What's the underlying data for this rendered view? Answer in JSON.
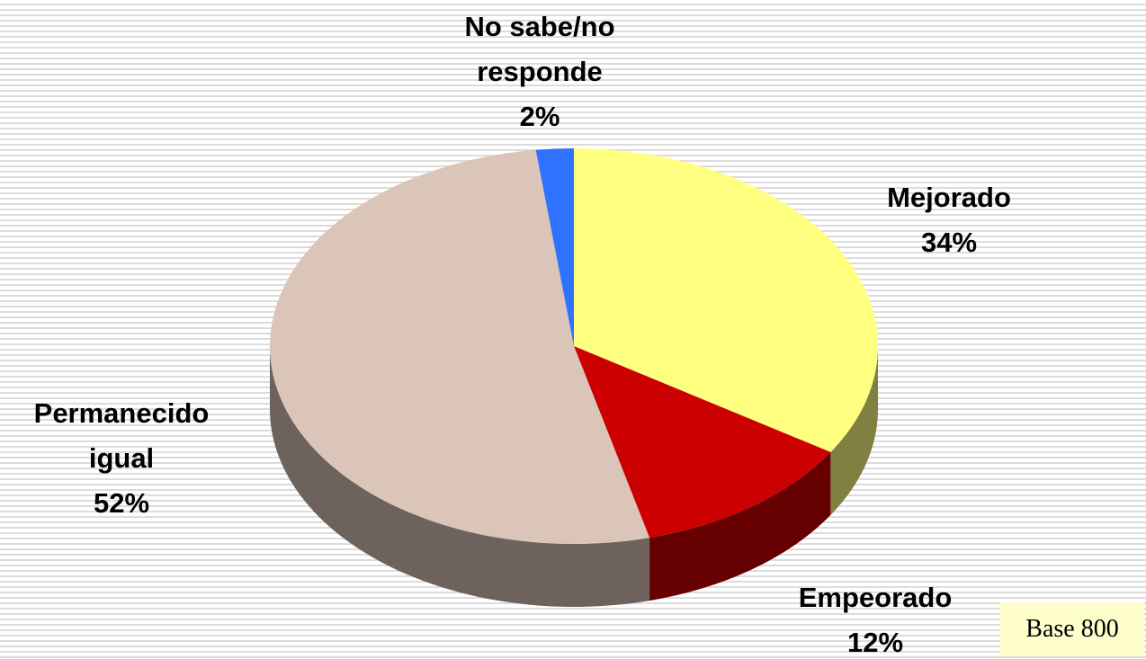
{
  "chart_data": {
    "type": "pie",
    "categories": [
      "Mejorado",
      "Empeorado",
      "Permanecido igual",
      "No sabe/no responde"
    ],
    "values": [
      34,
      12,
      52,
      2
    ],
    "value_labels": [
      "34%",
      "12%",
      "52%",
      "2%"
    ],
    "colors": [
      "#ffff80",
      "#cc0000",
      "#dac5b8",
      "#2f72ff"
    ],
    "annotation": "Base 800"
  }
}
